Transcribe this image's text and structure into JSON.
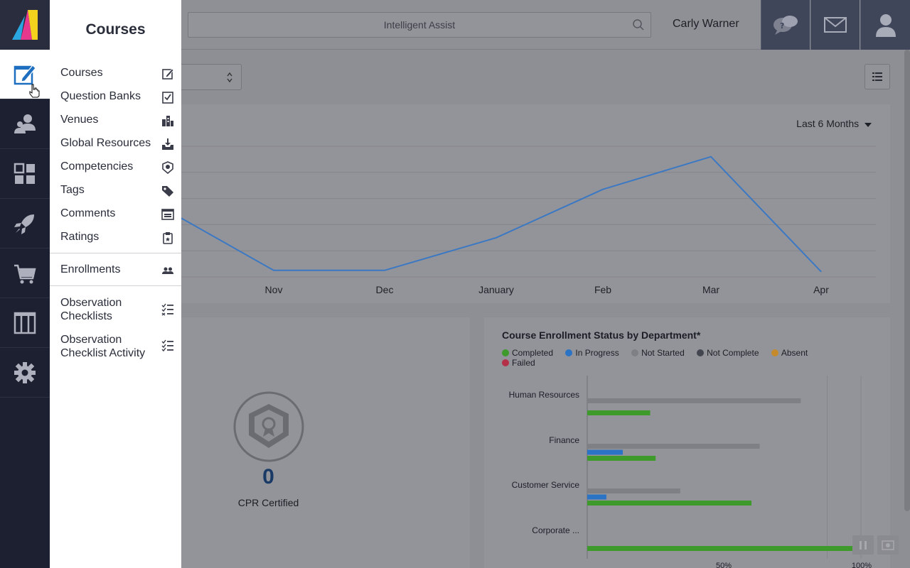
{
  "header": {
    "search_placeholder": "Intelligent Assist",
    "user_name": "Carly Warner"
  },
  "menu": {
    "title": "Courses",
    "items": [
      {
        "label": "Courses",
        "icon": "edit-icon"
      },
      {
        "label": "Question Banks",
        "icon": "checklist-icon"
      },
      {
        "label": "Venues",
        "icon": "building-icon"
      },
      {
        "label": "Global Resources",
        "icon": "download-tray-icon"
      },
      {
        "label": "Competencies",
        "icon": "shield-icon"
      },
      {
        "label": "Tags",
        "icon": "tag-icon"
      },
      {
        "label": "Comments",
        "icon": "comment-box-icon"
      },
      {
        "label": "Ratings",
        "icon": "clipboard-icon"
      }
    ],
    "enrollments": {
      "label": "Enrollments",
      "icon": "users-icon"
    },
    "observation": [
      {
        "line1": "Observation",
        "line2": "Checklists",
        "icon": "list-check-icon"
      },
      {
        "line1": "Observation",
        "line2": "Checklist Activity",
        "icon": "list-check-icon"
      }
    ]
  },
  "line_panel": {
    "range_label": "Last 6 Months"
  },
  "badge_panel": {
    "count": "0",
    "label": "CPR Certified"
  },
  "bar_panel": {
    "title": "Course Enrollment Status by Department*",
    "axis_ticks": [
      "50%",
      "100%"
    ]
  },
  "colors": {
    "completed": "#3d9a2b",
    "in_progress": "#2b73c4",
    "not_started": "#7f8086",
    "not_complete": "#44464f",
    "absent": "#c58a2c",
    "failed": "#b33048",
    "line": "#3b78c4",
    "rail_bg": "#1d2030"
  },
  "chart_data": [
    {
      "type": "line",
      "categories": [
        "Nov",
        "Dec",
        "January",
        "Feb",
        "Mar",
        "Apr"
      ],
      "series": [
        {
          "values": [
            5,
            5,
            30,
            67,
            92,
            4
          ]
        }
      ],
      "title": "",
      "xlabel": "",
      "ylabel": "",
      "ylim": [
        0,
        100
      ],
      "grid": true,
      "range_label": "Last 6 Months"
    },
    {
      "type": "bar",
      "orientation": "horizontal",
      "title": "Course Enrollment Status by Department*",
      "categories": [
        "Human Resources",
        "Finance",
        "Customer Service",
        "Corporate ..."
      ],
      "legend": [
        "Completed",
        "In Progress",
        "Not Started",
        "Not Complete",
        "Absent",
        "Failed"
      ],
      "series": [
        {
          "name": "Not Started",
          "values": [
            78,
            63,
            34,
            0
          ]
        },
        {
          "name": "In Progress",
          "values": [
            0,
            13,
            7,
            0
          ]
        },
        {
          "name": "Completed",
          "values": [
            23,
            25,
            60,
            100
          ]
        }
      ],
      "xlim": [
        0,
        100
      ],
      "x_ticks": [
        "50%",
        "100%"
      ],
      "legend_position": "top"
    }
  ]
}
